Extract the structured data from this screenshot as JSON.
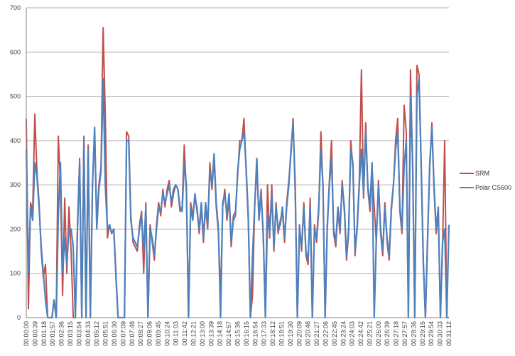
{
  "chart_data": {
    "type": "line",
    "title": "",
    "xlabel": "",
    "ylabel": "",
    "ylim": [
      0,
      700
    ],
    "yticks": [
      "0",
      "100",
      "200",
      "300",
      "400",
      "500",
      "600",
      "700"
    ],
    "grid": true,
    "legend_position": "right",
    "x_start_seconds": 0,
    "x_step_seconds": 9.4545,
    "xtick_labels": [
      "00:00:00",
      "00:00:39",
      "00:01:18",
      "00:01:57",
      "00:02:36",
      "00:03:15",
      "00:03:54",
      "00:04:33",
      "00:05:12",
      "00:05:51",
      "00:06:30",
      "00:07:09",
      "00:07:48",
      "00:08:27",
      "00:09:06",
      "00:09:45",
      "00:10:24",
      "00:11:03",
      "00:11:42",
      "00:12:21",
      "00:13:00",
      "00:13:39",
      "00:14:18",
      "00:14:57",
      "00:15:36",
      "00:16:15",
      "00:16:54",
      "00:17:33",
      "00:18:12",
      "00:18:51",
      "00:19:30",
      "00:20:09",
      "00:20:48",
      "00:21:27",
      "00:22:06",
      "00:22:45",
      "00:23:24",
      "00:24:03",
      "00:24:42",
      "00:25:21",
      "00:26:00",
      "00:26:39",
      "00:27:18",
      "00:27:57",
      "00:28:36",
      "00:29:15",
      "00:29:54",
      "00:30:33",
      "00:31:12"
    ],
    "series": [
      {
        "name": "SRM",
        "color": "#c0504d",
        "values": [
          450,
          20,
          260,
          240,
          460,
          330,
          260,
          150,
          90,
          120,
          0,
          0,
          0,
          40,
          0,
          410,
          300,
          50,
          270,
          100,
          250,
          150,
          0,
          0,
          210,
          360,
          0,
          410,
          0,
          390,
          0,
          300,
          420,
          220,
          300,
          340,
          655,
          460,
          180,
          210,
          190,
          200,
          90,
          0,
          0,
          0,
          0,
          420,
          410,
          230,
          170,
          160,
          150,
          210,
          240,
          100,
          260,
          0,
          210,
          170,
          130,
          210,
          260,
          230,
          290,
          250,
          290,
          310,
          250,
          280,
          300,
          290,
          240,
          250,
          390,
          280,
          0,
          260,
          230,
          270,
          250,
          190,
          250,
          170,
          250,
          200,
          350,
          290,
          360,
          250,
          190,
          50,
          250,
          290,
          220,
          270,
          160,
          230,
          240,
          320,
          400,
          400,
          450,
          330,
          220,
          0,
          50,
          250,
          340,
          230,
          290,
          180,
          20,
          300,
          180,
          300,
          150,
          260,
          190,
          220,
          240,
          170,
          260,
          310,
          370,
          450,
          280,
          0,
          210,
          150,
          260,
          140,
          120,
          270,
          0,
          210,
          170,
          240,
          420,
          290,
          0,
          210,
          310,
          400,
          190,
          160,
          240,
          190,
          310,
          240,
          130,
          190,
          400,
          340,
          140,
          210,
          310,
          560,
          270,
          440,
          290,
          240,
          340,
          250,
          170,
          310,
          190,
          140,
          260,
          170,
          130,
          240,
          300,
          400,
          450,
          240,
          190,
          480,
          420,
          0,
          560,
          340,
          0,
          570,
          550,
          340,
          120,
          0,
          170,
          340,
          440,
          290,
          190,
          240,
          0,
          160,
          400,
          0,
          0
        ]
      },
      {
        "name": "Polar CS600",
        "color": "#4f81bd",
        "values": [
          380,
          100,
          250,
          220,
          350,
          320,
          250,
          160,
          100,
          40,
          0,
          0,
          0,
          40,
          0,
          230,
          350,
          100,
          180,
          120,
          200,
          200,
          160,
          0,
          200,
          350,
          0,
          400,
          0,
          380,
          0,
          300,
          430,
          200,
          290,
          330,
          540,
          300,
          200,
          210,
          190,
          200,
          100,
          0,
          0,
          0,
          0,
          400,
          400,
          220,
          180,
          170,
          160,
          200,
          230,
          150,
          250,
          0,
          200,
          180,
          140,
          200,
          250,
          240,
          280,
          260,
          280,
          300,
          260,
          290,
          300,
          290,
          250,
          240,
          350,
          300,
          0,
          250,
          220,
          280,
          240,
          200,
          260,
          180,
          260,
          210,
          330,
          300,
          370,
          260,
          200,
          0,
          260,
          280,
          230,
          280,
          170,
          220,
          230,
          330,
          380,
          400,
          420,
          340,
          230,
          0,
          140,
          250,
          360,
          220,
          280,
          190,
          0,
          230,
          190,
          280,
          160,
          250,
          200,
          210,
          250,
          180,
          250,
          300,
          380,
          440,
          300,
          0,
          200,
          160,
          250,
          150,
          130,
          250,
          0,
          200,
          180,
          250,
          380,
          300,
          0,
          200,
          300,
          360,
          200,
          170,
          250,
          200,
          300,
          250,
          140,
          200,
          380,
          350,
          150,
          200,
          300,
          380,
          280,
          420,
          300,
          250,
          350,
          0,
          180,
          300,
          200,
          150,
          250,
          180,
          140,
          250,
          300,
          380,
          420,
          250,
          200,
          340,
          400,
          0,
          500,
          350,
          0,
          500,
          540,
          350,
          130,
          0,
          180,
          350,
          430,
          300,
          200,
          250,
          0,
          170,
          200,
          0,
          210
        ]
      }
    ]
  }
}
